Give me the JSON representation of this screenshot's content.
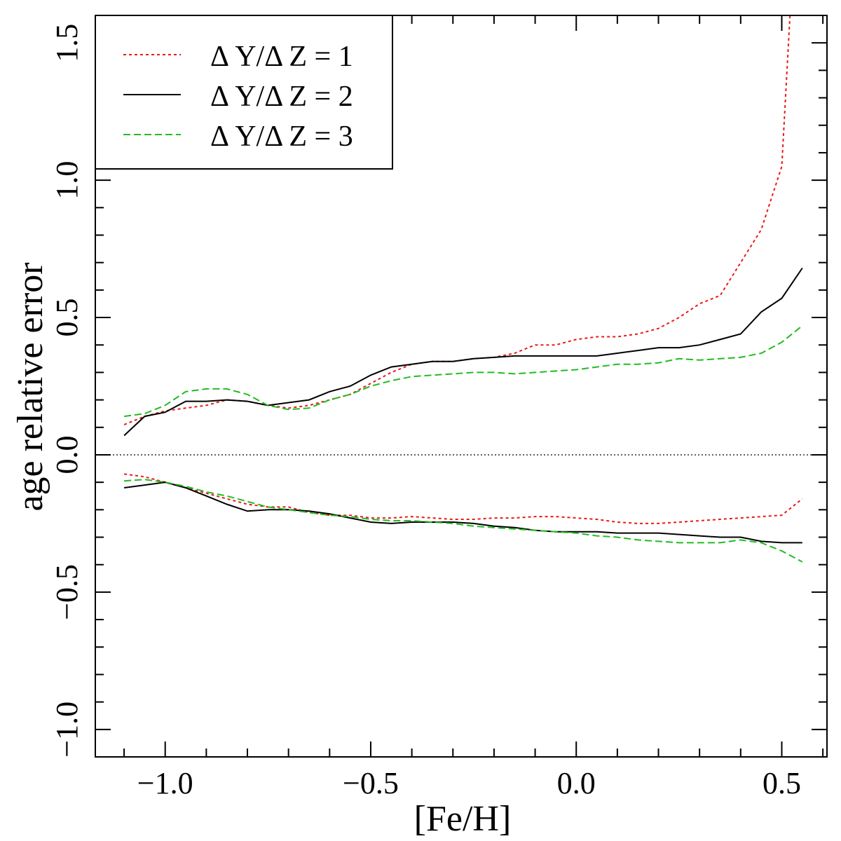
{
  "chart_data": {
    "type": "line",
    "title": "",
    "xlabel": "[Fe/H]",
    "ylabel": "age relative error",
    "xlim": [
      -1.17,
      0.61
    ],
    "ylim": [
      -1.1,
      1.6
    ],
    "xticks": [
      -1.0,
      -0.5,
      0.0,
      0.5
    ],
    "xtick_labels": [
      "−1.0",
      "−0.5",
      "0.0",
      "0.5"
    ],
    "yticks": [
      -1.0,
      -0.5,
      0.0,
      0.5,
      1.0,
      1.5
    ],
    "ytick_labels": [
      "−1.0",
      "−0.5",
      "0.0",
      "0.5",
      "1.0",
      "1.5"
    ],
    "reference_line": {
      "y": 0.0,
      "style": "dotted"
    },
    "legend": {
      "position": "top-left",
      "entries": [
        {
          "label": "Δ Y/Δ Z  = 1",
          "color": "#e8191a",
          "dash": "dotted"
        },
        {
          "label": "Δ Y/Δ Z  = 2",
          "color": "#000000",
          "dash": "solid"
        },
        {
          "label": "Δ Y/Δ Z  = 3",
          "color": "#22bb22",
          "dash": "dashed"
        }
      ]
    },
    "series": [
      {
        "name": "ΔY/ΔZ = 1 upper",
        "legend_index": 0,
        "color": "#e8191a",
        "dash": "dotted",
        "x": [
          -1.1,
          -1.05,
          -1.0,
          -0.95,
          -0.9,
          -0.85,
          -0.8,
          -0.75,
          -0.7,
          -0.65,
          -0.6,
          -0.55,
          -0.5,
          -0.45,
          -0.4,
          -0.35,
          -0.3,
          -0.25,
          -0.2,
          -0.15,
          -0.1,
          -0.05,
          0.0,
          0.05,
          0.1,
          0.15,
          0.2,
          0.25,
          0.3,
          0.35,
          0.4,
          0.45,
          0.5,
          0.52
        ],
        "y": [
          0.11,
          0.14,
          0.16,
          0.17,
          0.18,
          0.2,
          0.195,
          0.18,
          0.17,
          0.18,
          0.2,
          0.22,
          0.26,
          0.3,
          0.33,
          0.34,
          0.34,
          0.35,
          0.355,
          0.37,
          0.4,
          0.4,
          0.42,
          0.43,
          0.43,
          0.44,
          0.46,
          0.5,
          0.55,
          0.58,
          0.7,
          0.82,
          1.05,
          1.6
        ]
      },
      {
        "name": "ΔY/ΔZ = 2 upper",
        "legend_index": 1,
        "color": "#000000",
        "dash": "solid",
        "x": [
          -1.1,
          -1.05,
          -1.0,
          -0.95,
          -0.9,
          -0.85,
          -0.8,
          -0.75,
          -0.7,
          -0.65,
          -0.6,
          -0.55,
          -0.5,
          -0.45,
          -0.4,
          -0.35,
          -0.3,
          -0.25,
          -0.2,
          -0.15,
          -0.1,
          -0.05,
          0.0,
          0.05,
          0.1,
          0.15,
          0.2,
          0.25,
          0.3,
          0.35,
          0.4,
          0.45,
          0.5,
          0.55
        ],
        "y": [
          0.07,
          0.14,
          0.155,
          0.195,
          0.195,
          0.2,
          0.195,
          0.18,
          0.19,
          0.2,
          0.23,
          0.25,
          0.29,
          0.32,
          0.33,
          0.34,
          0.34,
          0.35,
          0.355,
          0.36,
          0.36,
          0.36,
          0.36,
          0.36,
          0.37,
          0.38,
          0.39,
          0.39,
          0.4,
          0.42,
          0.44,
          0.52,
          0.57,
          0.68
        ]
      },
      {
        "name": "ΔY/ΔZ = 3 upper",
        "legend_index": 2,
        "color": "#22bb22",
        "dash": "dashed",
        "x": [
          -1.1,
          -1.05,
          -1.0,
          -0.95,
          -0.9,
          -0.85,
          -0.8,
          -0.75,
          -0.7,
          -0.65,
          -0.6,
          -0.55,
          -0.5,
          -0.45,
          -0.4,
          -0.35,
          -0.3,
          -0.25,
          -0.2,
          -0.15,
          -0.1,
          -0.05,
          0.0,
          0.05,
          0.1,
          0.15,
          0.2,
          0.25,
          0.3,
          0.35,
          0.4,
          0.45,
          0.5,
          0.55
        ],
        "y": [
          0.14,
          0.15,
          0.18,
          0.23,
          0.24,
          0.24,
          0.22,
          0.18,
          0.165,
          0.17,
          0.2,
          0.22,
          0.25,
          0.27,
          0.285,
          0.29,
          0.295,
          0.3,
          0.3,
          0.295,
          0.3,
          0.305,
          0.31,
          0.32,
          0.33,
          0.33,
          0.335,
          0.35,
          0.345,
          0.35,
          0.355,
          0.37,
          0.41,
          0.47
        ]
      },
      {
        "name": "ΔY/ΔZ = 1 lower",
        "legend_index": 0,
        "color": "#e8191a",
        "dash": "dotted",
        "x": [
          -1.1,
          -1.05,
          -1.0,
          -0.95,
          -0.9,
          -0.85,
          -0.8,
          -0.75,
          -0.7,
          -0.65,
          -0.6,
          -0.55,
          -0.5,
          -0.45,
          -0.4,
          -0.35,
          -0.3,
          -0.25,
          -0.2,
          -0.15,
          -0.1,
          -0.05,
          0.0,
          0.05,
          0.1,
          0.15,
          0.2,
          0.25,
          0.3,
          0.35,
          0.4,
          0.45,
          0.5,
          0.55
        ],
        "y": [
          -0.07,
          -0.08,
          -0.1,
          -0.12,
          -0.14,
          -0.16,
          -0.18,
          -0.19,
          -0.19,
          -0.21,
          -0.22,
          -0.22,
          -0.23,
          -0.23,
          -0.225,
          -0.23,
          -0.235,
          -0.235,
          -0.23,
          -0.23,
          -0.225,
          -0.225,
          -0.23,
          -0.235,
          -0.245,
          -0.25,
          -0.25,
          -0.245,
          -0.24,
          -0.235,
          -0.23,
          -0.225,
          -0.22,
          -0.16
        ]
      },
      {
        "name": "ΔY/ΔZ = 2 lower",
        "legend_index": 1,
        "color": "#000000",
        "dash": "solid",
        "x": [
          -1.1,
          -1.05,
          -1.0,
          -0.95,
          -0.9,
          -0.85,
          -0.8,
          -0.75,
          -0.7,
          -0.65,
          -0.6,
          -0.55,
          -0.5,
          -0.45,
          -0.4,
          -0.35,
          -0.3,
          -0.25,
          -0.2,
          -0.15,
          -0.1,
          -0.05,
          0.0,
          0.05,
          0.1,
          0.15,
          0.2,
          0.25,
          0.3,
          0.35,
          0.4,
          0.45,
          0.5,
          0.55
        ],
        "y": [
          -0.12,
          -0.11,
          -0.1,
          -0.12,
          -0.15,
          -0.18,
          -0.205,
          -0.2,
          -0.2,
          -0.205,
          -0.215,
          -0.23,
          -0.245,
          -0.25,
          -0.245,
          -0.245,
          -0.245,
          -0.25,
          -0.26,
          -0.265,
          -0.275,
          -0.28,
          -0.28,
          -0.28,
          -0.285,
          -0.285,
          -0.285,
          -0.29,
          -0.295,
          -0.3,
          -0.3,
          -0.315,
          -0.32,
          -0.32
        ]
      },
      {
        "name": "ΔY/ΔZ = 3 lower",
        "legend_index": 2,
        "color": "#22bb22",
        "dash": "dashed",
        "x": [
          -1.1,
          -1.05,
          -1.0,
          -0.95,
          -0.9,
          -0.85,
          -0.8,
          -0.75,
          -0.7,
          -0.65,
          -0.6,
          -0.55,
          -0.5,
          -0.45,
          -0.4,
          -0.35,
          -0.3,
          -0.25,
          -0.2,
          -0.15,
          -0.1,
          -0.05,
          0.0,
          0.05,
          0.1,
          0.15,
          0.2,
          0.25,
          0.3,
          0.35,
          0.4,
          0.45,
          0.5,
          0.55
        ],
        "y": [
          -0.095,
          -0.09,
          -0.1,
          -0.115,
          -0.135,
          -0.15,
          -0.17,
          -0.19,
          -0.2,
          -0.21,
          -0.22,
          -0.225,
          -0.235,
          -0.24,
          -0.24,
          -0.245,
          -0.25,
          -0.26,
          -0.265,
          -0.27,
          -0.275,
          -0.28,
          -0.285,
          -0.295,
          -0.3,
          -0.31,
          -0.315,
          -0.32,
          -0.32,
          -0.32,
          -0.31,
          -0.32,
          -0.35,
          -0.39
        ]
      }
    ]
  }
}
